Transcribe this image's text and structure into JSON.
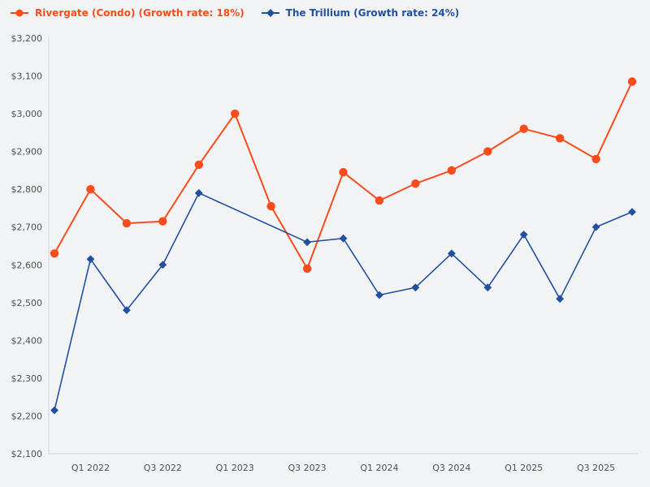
{
  "legend": {
    "items": [
      {
        "label": "Rivergate (Condo) (Growth rate: 18%)",
        "color": "#f94c1d",
        "marker": "circle"
      },
      {
        "label": "The Trillium (Growth rate: 24%)",
        "color": "#2150a0",
        "marker": "diamond"
      }
    ]
  },
  "chart_data": {
    "type": "line",
    "title": "",
    "xlabel": "",
    "ylabel": "",
    "grid": false,
    "legend_position": "top-left",
    "ylim": [
      2100,
      3200
    ],
    "y_tick_step": 100,
    "y_tick_labels": [
      "$2,100",
      "$2,200",
      "$2,300",
      "$2,400",
      "$2,500",
      "$2,600",
      "$2,700",
      "$2,800",
      "$2,900",
      "$3,000",
      "$3,100",
      "$3,200"
    ],
    "categories": [
      "Q4 2021",
      "Q1 2022",
      "Q2 2022",
      "Q3 2022",
      "Q4 2022",
      "Q1 2023",
      "Q2 2023",
      "Q3 2023",
      "Q4 2023",
      "Q1 2024",
      "Q2 2024",
      "Q3 2024",
      "Q4 2024",
      "Q1 2025",
      "Q2 2025",
      "Q3 2025",
      "Q4 2025"
    ],
    "x_ticks": [
      {
        "label": "Q1 2022",
        "index": 1
      },
      {
        "label": "Q3 2022",
        "index": 3
      },
      {
        "label": "Q1 2023",
        "index": 5
      },
      {
        "label": "Q3 2023",
        "index": 7
      },
      {
        "label": "Q1 2024",
        "index": 9
      },
      {
        "label": "Q3 2024",
        "index": 11
      },
      {
        "label": "Q1 2025",
        "index": 13
      },
      {
        "label": "Q3 2025",
        "index": 15
      }
    ],
    "series": [
      {
        "name": "Rivergate (Condo)",
        "growth_rate": "18%",
        "color": "#f94c1d",
        "marker": "circle",
        "line_width": 2,
        "values": [
          2630,
          2800,
          2710,
          2715,
          2865,
          3000,
          2755,
          2590,
          2845,
          2770,
          2815,
          2850,
          2900,
          2960,
          2935,
          2880,
          3085
        ]
      },
      {
        "name": "The Trillium",
        "growth_rate": "24%",
        "color": "#2150a0",
        "marker": "diamond",
        "line_width": 1.6,
        "values": [
          2215,
          2615,
          2480,
          2600,
          2790,
          null,
          null,
          2660,
          2670,
          2520,
          2540,
          2630,
          2540,
          2680,
          2510,
          2700,
          2740
        ]
      }
    ]
  },
  "colors": {
    "background": "#f2f3f5",
    "axis": "#c9d4e6",
    "tick_text": "#515155"
  }
}
